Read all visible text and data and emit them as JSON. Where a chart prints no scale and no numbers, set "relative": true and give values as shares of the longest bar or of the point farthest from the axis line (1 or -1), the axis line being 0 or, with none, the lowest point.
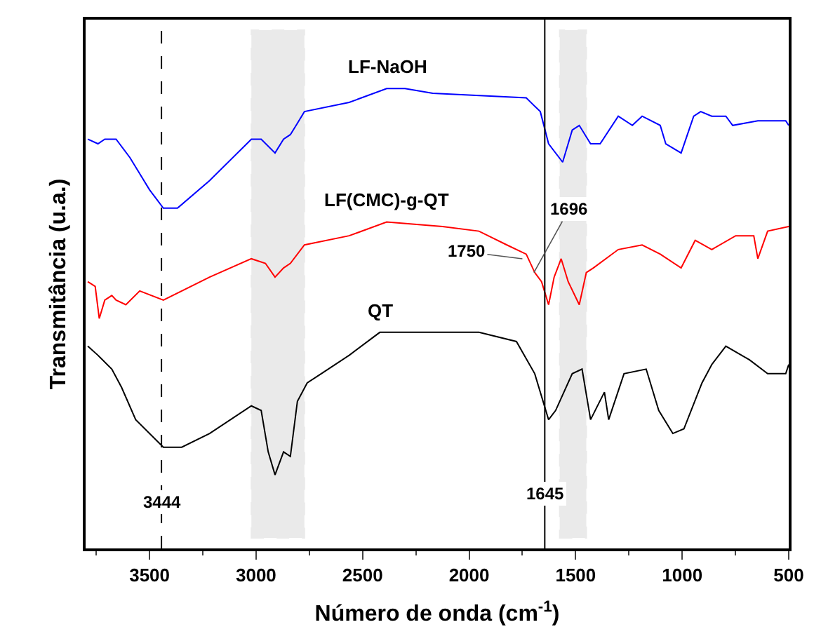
{
  "chart_data": {
    "type": "line",
    "relative": true,
    "xlabel": "Número de onda (cm$^{-1}$)",
    "ylabel": "Transmitância (u.a.)",
    "xlim": [
      3800,
      500
    ],
    "xticks": [
      3500,
      3000,
      2500,
      2000,
      1500,
      1000,
      500
    ],
    "grid": false,
    "legend": false,
    "marker": "none",
    "line_style": "solid",
    "series": [
      {
        "name": "LF-NaOH",
        "color": "#0000ff",
        "x": [
          3790,
          3742,
          3710,
          3657,
          3592,
          3500,
          3435,
          3369,
          3218,
          3022,
          2976,
          2911,
          2871,
          2839,
          2812,
          2773,
          2563,
          2387,
          2301,
          2171,
          1732,
          1666,
          1627,
          1561,
          1516,
          1483,
          1430,
          1385,
          1300,
          1234,
          1188,
          1103,
          1077,
          1005,
          946,
          913,
          861,
          795,
          763,
          645,
          514,
          500
        ],
        "values": [
          0.89,
          0.88,
          0.89,
          0.89,
          0.85,
          0.78,
          0.74,
          0.74,
          0.8,
          0.89,
          0.89,
          0.86,
          0.89,
          0.9,
          0.92,
          0.95,
          0.97,
          1.0,
          1.0,
          0.99,
          0.98,
          0.95,
          0.88,
          0.84,
          0.91,
          0.92,
          0.88,
          0.88,
          0.94,
          0.92,
          0.94,
          0.92,
          0.88,
          0.86,
          0.94,
          0.95,
          0.94,
          0.94,
          0.92,
          0.93,
          0.93,
          0.92
        ]
      },
      {
        "name": "LF(CMC)-g-QT",
        "color": "#ff0000",
        "x": [
          3790,
          3755,
          3736,
          3710,
          3677,
          3657,
          3611,
          3546,
          3435,
          3218,
          3022,
          2956,
          2911,
          2871,
          2839,
          2773,
          2563,
          2387,
          2125,
          1954,
          1823,
          1732,
          1692,
          1660,
          1627,
          1601,
          1568,
          1535,
          1483,
          1450,
          1417,
          1300,
          1188,
          1103,
          1005,
          939,
          861,
          749,
          664,
          645,
          599,
          500
        ],
        "values": [
          0.58,
          0.57,
          0.5,
          0.54,
          0.55,
          0.54,
          0.53,
          0.56,
          0.54,
          0.59,
          0.63,
          0.62,
          0.59,
          0.61,
          0.62,
          0.66,
          0.68,
          0.71,
          0.7,
          0.69,
          0.66,
          0.64,
          0.6,
          0.58,
          0.53,
          0.59,
          0.63,
          0.58,
          0.53,
          0.6,
          0.61,
          0.65,
          0.66,
          0.64,
          0.61,
          0.67,
          0.65,
          0.68,
          0.68,
          0.63,
          0.69,
          0.7
        ]
      },
      {
        "name": "QT",
        "color": "#000000",
        "x": [
          3790,
          3742,
          3677,
          3631,
          3565,
          3435,
          3349,
          3218,
          3022,
          2976,
          2943,
          2911,
          2871,
          2839,
          2806,
          2760,
          2694,
          2563,
          2419,
          1954,
          1778,
          1692,
          1627,
          1594,
          1516,
          1470,
          1430,
          1365,
          1345,
          1273,
          1169,
          1110,
          1044,
          992,
          907,
          861,
          795,
          684,
          599,
          514,
          500
        ],
        "values": [
          0.44,
          0.42,
          0.39,
          0.35,
          0.28,
          0.22,
          0.22,
          0.25,
          0.31,
          0.3,
          0.21,
          0.16,
          0.21,
          0.2,
          0.32,
          0.36,
          0.38,
          0.42,
          0.47,
          0.47,
          0.45,
          0.38,
          0.28,
          0.3,
          0.38,
          0.39,
          0.28,
          0.34,
          0.28,
          0.38,
          0.39,
          0.3,
          0.25,
          0.26,
          0.36,
          0.4,
          0.44,
          0.41,
          0.38,
          0.38,
          0.4
        ]
      }
    ],
    "ref_lines": [
      {
        "axis": "x",
        "value": 3444,
        "color": "#000000",
        "line_style": "dashed"
      },
      {
        "axis": "x",
        "value": 1645,
        "color": "#000000",
        "line_style": "solid"
      }
    ],
    "bands": [
      {
        "axis": "x",
        "from": 3022,
        "to": 2773,
        "color": "#000000"
      },
      {
        "axis": "x",
        "from": 1575,
        "to": 1450,
        "color": "#000000"
      }
    ],
    "annotations": [
      {
        "text": "3444",
        "x": 3444,
        "y": 0.1
      },
      {
        "text": "1645",
        "x": 1645,
        "y": 0.12
      },
      {
        "text": "1696",
        "x": 1696,
        "y": 0.6
      },
      {
        "text": "1750",
        "x": 1750,
        "y": 0.63
      }
    ]
  }
}
